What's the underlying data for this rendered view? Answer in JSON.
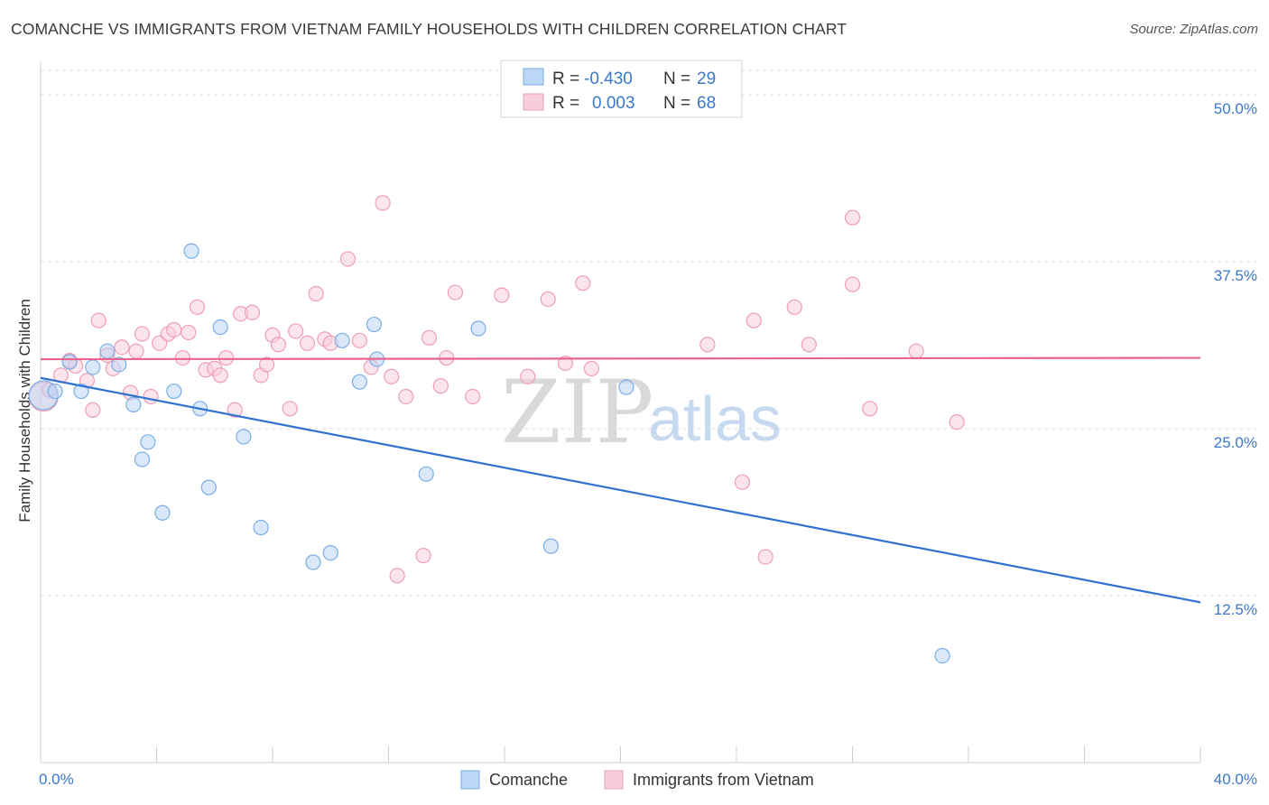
{
  "chart_data": {
    "type": "scatter",
    "title": "COMANCHE VS IMMIGRANTS FROM VIETNAM FAMILY HOUSEHOLDS WITH CHILDREN CORRELATION CHART",
    "source": "Source: ZipAtlas.com",
    "xlabel": "",
    "ylabel": "Family Households with Children",
    "xlim": [
      0,
      40
    ],
    "ylim": [
      0,
      52.5
    ],
    "x_tick_labels": {
      "min": "0.0%",
      "max": "40.0%"
    },
    "y_ticks": [
      {
        "value": 12.5,
        "label": "12.5%"
      },
      {
        "value": 25.0,
        "label": "25.0%"
      },
      {
        "value": 37.5,
        "label": "37.5%"
      },
      {
        "value": 50.0,
        "label": "50.0%"
      }
    ],
    "watermark": {
      "zip": "ZIP",
      "atlas": "atlas"
    },
    "series": [
      {
        "name": "Comanche",
        "color": "#7aaee6",
        "fill": "#bcd6f5",
        "line_color": "#2f72d0",
        "r_label": "R =",
        "r_value": "-0.430",
        "n_label": "N =",
        "n_value": "29",
        "trend": {
          "x0": 0,
          "y0": 28.8,
          "x1": 40,
          "y1": 12.0
        },
        "points": [
          [
            0.1,
            27.5
          ],
          [
            0.5,
            27.8
          ],
          [
            1.0,
            30.0
          ],
          [
            1.4,
            27.8
          ],
          [
            1.8,
            29.6
          ],
          [
            2.3,
            30.8
          ],
          [
            2.7,
            29.8
          ],
          [
            3.2,
            26.8
          ],
          [
            3.5,
            22.7
          ],
          [
            3.7,
            24.0
          ],
          [
            4.2,
            18.7
          ],
          [
            4.6,
            27.8
          ],
          [
            5.2,
            38.3
          ],
          [
            5.5,
            26.5
          ],
          [
            5.8,
            20.6
          ],
          [
            6.2,
            32.6
          ],
          [
            7.0,
            24.4
          ],
          [
            7.6,
            17.6
          ],
          [
            9.4,
            15.0
          ],
          [
            10.0,
            15.7
          ],
          [
            10.4,
            31.6
          ],
          [
            11.0,
            28.5
          ],
          [
            11.5,
            32.8
          ],
          [
            11.6,
            30.2
          ],
          [
            13.3,
            21.6
          ],
          [
            15.1,
            32.5
          ],
          [
            17.6,
            16.2
          ],
          [
            20.2,
            28.1
          ],
          [
            31.1,
            8.0
          ]
        ]
      },
      {
        "name": "Immigrants from Vietnam",
        "color": "#ee9eb6",
        "fill": "#f8cdda",
        "line_color": "#e8648b",
        "r_label": "R =",
        "r_value": "0.003",
        "n_label": "N =",
        "n_value": "68",
        "trend": {
          "x0": 0,
          "y0": 30.2,
          "x1": 40,
          "y1": 30.3
        },
        "points": [
          [
            0.1,
            27.4
          ],
          [
            0.3,
            27.9
          ],
          [
            0.7,
            29.0
          ],
          [
            1.0,
            30.1
          ],
          [
            1.2,
            29.7
          ],
          [
            1.6,
            28.6
          ],
          [
            1.8,
            26.4
          ],
          [
            2.0,
            33.1
          ],
          [
            2.3,
            30.5
          ],
          [
            2.5,
            29.5
          ],
          [
            2.8,
            31.1
          ],
          [
            3.1,
            27.7
          ],
          [
            3.3,
            30.8
          ],
          [
            3.5,
            32.1
          ],
          [
            3.8,
            27.4
          ],
          [
            4.1,
            31.4
          ],
          [
            4.4,
            32.1
          ],
          [
            4.6,
            32.4
          ],
          [
            4.9,
            30.3
          ],
          [
            5.1,
            32.2
          ],
          [
            5.4,
            34.1
          ],
          [
            5.7,
            29.4
          ],
          [
            6.0,
            29.5
          ],
          [
            6.2,
            29.0
          ],
          [
            6.4,
            30.3
          ],
          [
            6.7,
            26.4
          ],
          [
            6.9,
            33.6
          ],
          [
            7.3,
            33.7
          ],
          [
            7.6,
            29.0
          ],
          [
            7.8,
            29.8
          ],
          [
            8.0,
            32.0
          ],
          [
            8.2,
            31.3
          ],
          [
            8.6,
            26.5
          ],
          [
            8.8,
            32.3
          ],
          [
            9.2,
            31.4
          ],
          [
            9.5,
            35.1
          ],
          [
            9.8,
            31.7
          ],
          [
            10.0,
            31.4
          ],
          [
            10.6,
            37.7
          ],
          [
            11.0,
            31.6
          ],
          [
            11.4,
            29.6
          ],
          [
            11.8,
            41.9
          ],
          [
            12.1,
            28.9
          ],
          [
            12.3,
            14.0
          ],
          [
            12.6,
            27.4
          ],
          [
            13.2,
            15.5
          ],
          [
            13.4,
            31.8
          ],
          [
            13.8,
            28.2
          ],
          [
            14.0,
            30.3
          ],
          [
            14.3,
            35.2
          ],
          [
            14.9,
            27.4
          ],
          [
            15.9,
            35.0
          ],
          [
            16.8,
            28.9
          ],
          [
            17.5,
            34.7
          ],
          [
            18.1,
            29.9
          ],
          [
            18.7,
            35.9
          ],
          [
            19.0,
            29.5
          ],
          [
            23.0,
            31.3
          ],
          [
            24.2,
            21.0
          ],
          [
            24.6,
            33.1
          ],
          [
            25.0,
            15.4
          ],
          [
            26.0,
            34.1
          ],
          [
            26.5,
            31.3
          ],
          [
            28.0,
            40.8
          ],
          [
            28.0,
            35.8
          ],
          [
            28.6,
            26.5
          ],
          [
            30.2,
            30.8
          ],
          [
            31.6,
            25.5
          ]
        ]
      }
    ]
  }
}
